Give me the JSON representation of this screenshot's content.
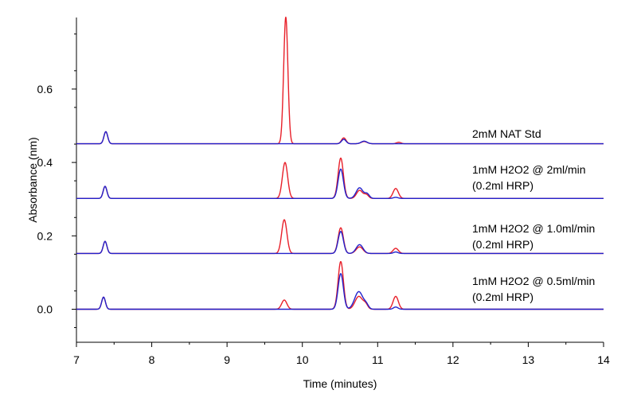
{
  "chart_data": {
    "type": "line",
    "xlabel": "Time (minutes)",
    "ylabel": "Absorbance (nm)",
    "xlim": [
      7,
      14
    ],
    "ylim": [
      -0.09,
      0.795
    ],
    "xticks": [
      7,
      8,
      9,
      10,
      11,
      12,
      13,
      14
    ],
    "yticks": [
      0.0,
      0.2,
      0.4,
      0.6
    ],
    "ytick_labels": [
      "0.0",
      "0.2",
      "0.4",
      "0.6"
    ],
    "grid": false,
    "colors": {
      "red": "#e8202a",
      "blue": "#2222cc"
    },
    "traces": [
      {
        "label": "2mM NAT Std",
        "label_lines": [
          "2mM NAT Std"
        ],
        "baseline": 0.451,
        "peaks": {
          "red": [
            [
              7.39,
              0.033,
              0.025
            ],
            [
              9.78,
              0.345,
              0.028
            ],
            [
              10.55,
              0.016,
              0.03
            ],
            [
              10.82,
              0.006,
              0.04
            ],
            [
              11.28,
              0.004,
              0.03
            ]
          ],
          "blue": [
            [
              7.39,
              0.033,
              0.025
            ],
            [
              10.55,
              0.012,
              0.03
            ],
            [
              10.82,
              0.007,
              0.04
            ]
          ]
        }
      },
      {
        "label": "1mM H2O2 @ 2ml/min (0.2ml HRP)",
        "label_lines": [
          "1mM H2O2 @ 2ml/min",
          "(0.2ml HRP)"
        ],
        "baseline": 0.302,
        "peaks": {
          "red": [
            [
              7.38,
              0.033,
              0.025
            ],
            [
              9.77,
              0.098,
              0.035
            ],
            [
              10.51,
              0.11,
              0.035
            ],
            [
              10.76,
              0.022,
              0.04
            ],
            [
              10.85,
              0.01,
              0.03
            ],
            [
              11.24,
              0.027,
              0.035
            ]
          ],
          "blue": [
            [
              7.38,
              0.033,
              0.025
            ],
            [
              10.51,
              0.08,
              0.035
            ],
            [
              10.76,
              0.029,
              0.045
            ],
            [
              10.86,
              0.012,
              0.03
            ],
            [
              11.24,
              0.003,
              0.03
            ]
          ]
        }
      },
      {
        "label": "1mM H2O2 @ 1.0ml/min (0.2ml HRP)",
        "label_lines": [
          "1mM H2O2 @ 1.0ml/min",
          "(0.2ml HRP)"
        ],
        "baseline": 0.152,
        "peaks": {
          "red": [
            [
              7.38,
              0.033,
              0.025
            ],
            [
              9.76,
              0.092,
              0.035
            ],
            [
              10.51,
              0.07,
              0.035
            ],
            [
              10.76,
              0.018,
              0.045
            ],
            [
              11.24,
              0.014,
              0.035
            ]
          ],
          "blue": [
            [
              7.38,
              0.033,
              0.025
            ],
            [
              10.51,
              0.06,
              0.035
            ],
            [
              10.76,
              0.024,
              0.045
            ],
            [
              11.24,
              0.004,
              0.03
            ]
          ]
        }
      },
      {
        "label": "1mM H2O2 @ 0.5ml/min (0.2ml HRP)",
        "label_lines": [
          "1mM H2O2 @ 0.5ml/min",
          "(0.2ml HRP)"
        ],
        "baseline": 0.0,
        "peaks": {
          "red": [
            [
              7.36,
              0.033,
              0.025
            ],
            [
              9.76,
              0.025,
              0.035
            ],
            [
              10.51,
              0.13,
              0.035
            ],
            [
              10.75,
              0.035,
              0.05
            ],
            [
              10.84,
              0.012,
              0.03
            ],
            [
              11.24,
              0.035,
              0.035
            ]
          ],
          "blue": [
            [
              7.36,
              0.033,
              0.025
            ],
            [
              10.51,
              0.097,
              0.035
            ],
            [
              10.75,
              0.048,
              0.055
            ],
            [
              10.85,
              0.01,
              0.03
            ],
            [
              11.24,
              0.006,
              0.03
            ]
          ]
        }
      }
    ]
  }
}
